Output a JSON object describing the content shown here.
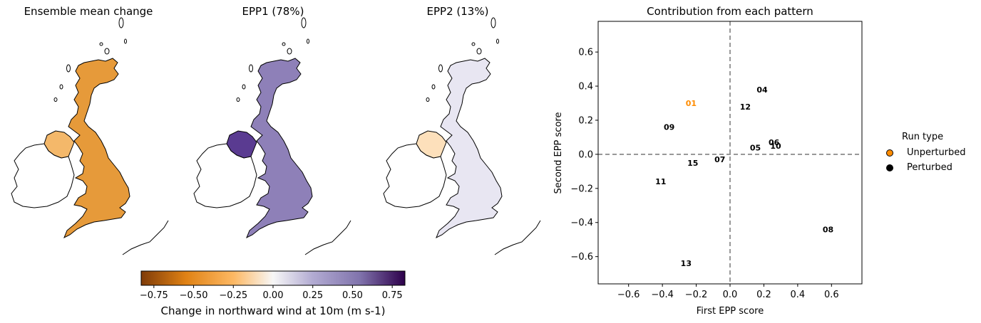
{
  "maps": [
    {
      "title": "Ensemble mean change",
      "scheme": "orange"
    },
    {
      "title": "EPP1 (78%)",
      "scheme": "purple"
    },
    {
      "title": "EPP2 (13%)",
      "scheme": "mixed"
    }
  ],
  "colorbar": {
    "label": "Change in northward wind at 10m (m s-1)",
    "min": -0.83,
    "max": 0.83,
    "ticks": [
      "−0.75",
      "−0.50",
      "−0.25",
      "0.00",
      "0.25",
      "0.50",
      "0.75"
    ],
    "tick_values": [
      -0.75,
      -0.5,
      -0.25,
      0,
      0.25,
      0.5,
      0.75
    ],
    "colors": [
      "#7f3b08",
      "#e08214",
      "#fdb863",
      "#f7f7f7",
      "#b2abd2",
      "#8073ac",
      "#2d004b"
    ]
  },
  "chart_data": {
    "type": "scatter",
    "title": "Contribution from each pattern",
    "xlabel": "First EPP score",
    "ylabel": "Second EPP score",
    "xlim": [
      -0.78,
      0.78
    ],
    "ylim": [
      -0.76,
      0.78
    ],
    "xticks": [
      -0.6,
      -0.4,
      -0.2,
      0.0,
      0.2,
      0.4,
      0.6
    ],
    "xtick_labels": [
      "−0.6",
      "−0.4",
      "−0.2",
      "0.0",
      "0.2",
      "0.4",
      "0.6"
    ],
    "yticks": [
      -0.6,
      -0.4,
      -0.2,
      0.0,
      0.2,
      0.4,
      0.6
    ],
    "ytick_labels": [
      "−0.6",
      "−0.4",
      "−0.2",
      "0.0",
      "0.2",
      "0.4",
      "0.6"
    ],
    "reference_lines": {
      "x": 0,
      "y": 0,
      "style": "dashed",
      "color": "#808080"
    },
    "grid": false,
    "points": [
      {
        "label": "01",
        "x": -0.23,
        "y": 0.3,
        "type": "Unperturbed"
      },
      {
        "label": "04",
        "x": 0.19,
        "y": 0.38,
        "type": "Perturbed"
      },
      {
        "label": "05",
        "x": 0.15,
        "y": 0.04,
        "type": "Perturbed"
      },
      {
        "label": "06",
        "x": 0.26,
        "y": 0.07,
        "type": "Perturbed"
      },
      {
        "label": "07",
        "x": -0.06,
        "y": -0.03,
        "type": "Perturbed"
      },
      {
        "label": "08",
        "x": 0.58,
        "y": -0.44,
        "type": "Perturbed"
      },
      {
        "label": "09",
        "x": -0.36,
        "y": 0.16,
        "type": "Perturbed"
      },
      {
        "label": "10",
        "x": 0.27,
        "y": 0.05,
        "type": "Perturbed"
      },
      {
        "label": "11",
        "x": -0.41,
        "y": -0.16,
        "type": "Perturbed"
      },
      {
        "label": "12",
        "x": 0.09,
        "y": 0.28,
        "type": "Perturbed"
      },
      {
        "label": "13",
        "x": -0.26,
        "y": -0.64,
        "type": "Perturbed"
      },
      {
        "label": "15",
        "x": -0.22,
        "y": -0.05,
        "type": "Perturbed"
      }
    ],
    "legend": {
      "title": "Run type",
      "placement": "right",
      "entries": [
        {
          "name": "Unperturbed",
          "color": "#ff8c00"
        },
        {
          "name": "Perturbed",
          "color": "#000000"
        }
      ]
    }
  }
}
